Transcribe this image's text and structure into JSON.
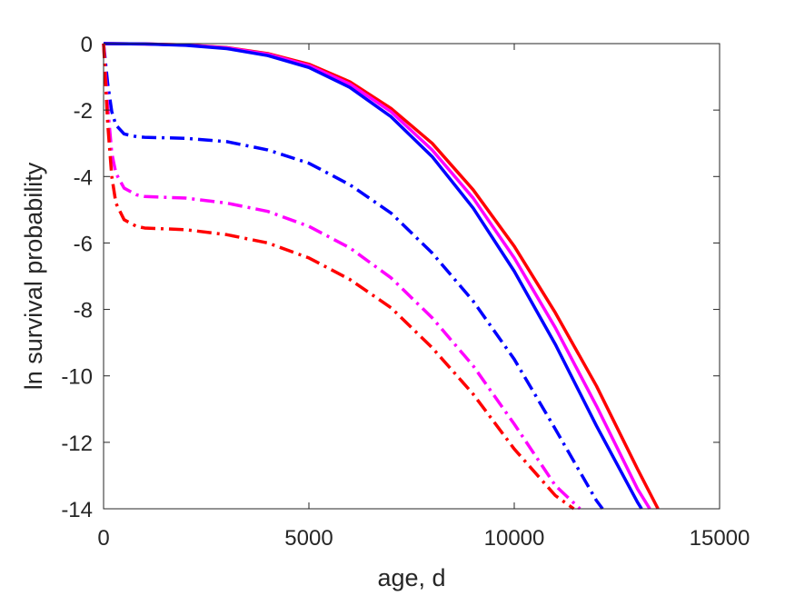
{
  "chart_data": {
    "type": "line",
    "title": "",
    "xlabel": "age, d",
    "ylabel": "ln survival probability",
    "xlim": [
      0,
      15000
    ],
    "ylim": [
      -14,
      0
    ],
    "xticks": [
      0,
      5000,
      10000,
      15000
    ],
    "xtick_labels": [
      "0",
      "5000",
      "10000",
      "15000"
    ],
    "yticks": [
      0,
      -2,
      -4,
      -6,
      -8,
      -10,
      -12,
      -14
    ],
    "ytick_labels": [
      "0",
      "-2",
      "-4",
      "-6",
      "-8",
      "-10",
      "-12",
      "-14"
    ],
    "grid": false,
    "legend": "none",
    "series": [
      {
        "color": "#ff0000",
        "dash": "solid",
        "x": [
          0,
          1000,
          2000,
          3000,
          4000,
          5000,
          6000,
          7000,
          8000,
          9000,
          10000,
          11000,
          12000,
          13000,
          13500
        ],
        "y": [
          0,
          -0.01,
          -0.04,
          -0.12,
          -0.3,
          -0.62,
          -1.15,
          -1.95,
          -3.0,
          -4.4,
          -6.1,
          -8.1,
          -10.3,
          -12.8,
          -14.0
        ]
      },
      {
        "color": "#ff00ff",
        "dash": "solid",
        "x": [
          0,
          1000,
          2000,
          3000,
          4000,
          5000,
          6000,
          7000,
          8000,
          9000,
          10000,
          11000,
          12000,
          13000,
          13300
        ],
        "y": [
          0,
          -0.01,
          -0.04,
          -0.13,
          -0.32,
          -0.66,
          -1.22,
          -2.05,
          -3.2,
          -4.65,
          -6.45,
          -8.55,
          -10.9,
          -13.4,
          -14.0
        ]
      },
      {
        "color": "#0000ff",
        "dash": "solid",
        "x": [
          0,
          1000,
          2000,
          3000,
          4000,
          5000,
          6000,
          7000,
          8000,
          9000,
          10000,
          11000,
          12000,
          13000,
          13100
        ],
        "y": [
          0,
          -0.01,
          -0.05,
          -0.15,
          -0.36,
          -0.72,
          -1.32,
          -2.2,
          -3.4,
          -4.95,
          -6.85,
          -9.05,
          -11.5,
          -13.8,
          -14.0
        ]
      },
      {
        "color": "#0000ff",
        "dash": "dashdot",
        "x": [
          0,
          50,
          100,
          200,
          300,
          500,
          800,
          1000,
          2000,
          3000,
          4000,
          5000,
          6000,
          7000,
          8000,
          9000,
          10000,
          11000,
          12000,
          12150
        ],
        "y": [
          0,
          -0.6,
          -1.2,
          -2.05,
          -2.45,
          -2.72,
          -2.8,
          -2.82,
          -2.85,
          -2.95,
          -3.2,
          -3.6,
          -4.25,
          -5.1,
          -6.3,
          -7.75,
          -9.5,
          -11.6,
          -13.75,
          -14.0
        ]
      },
      {
        "color": "#ff00ff",
        "dash": "dashdot",
        "x": [
          0,
          50,
          100,
          200,
          300,
          500,
          800,
          1000,
          2000,
          3000,
          4000,
          5000,
          6000,
          7000,
          8000,
          9000,
          10000,
          11000,
          11600
        ],
        "y": [
          0,
          -1.0,
          -1.9,
          -3.3,
          -3.9,
          -4.35,
          -4.55,
          -4.6,
          -4.65,
          -4.8,
          -5.05,
          -5.5,
          -6.15,
          -7.05,
          -8.25,
          -9.7,
          -11.45,
          -13.3,
          -14.0
        ]
      },
      {
        "color": "#ff0000",
        "dash": "dashdot",
        "x": [
          0,
          50,
          100,
          200,
          300,
          500,
          800,
          1000,
          2000,
          3000,
          4000,
          5000,
          6000,
          7000,
          8000,
          9000,
          10000,
          11000,
          11450
        ],
        "y": [
          0,
          -1.2,
          -2.4,
          -4.0,
          -4.8,
          -5.3,
          -5.5,
          -5.55,
          -5.6,
          -5.75,
          -6.0,
          -6.45,
          -7.1,
          -7.95,
          -9.15,
          -10.55,
          -12.2,
          -13.6,
          -14.0
        ]
      }
    ]
  }
}
